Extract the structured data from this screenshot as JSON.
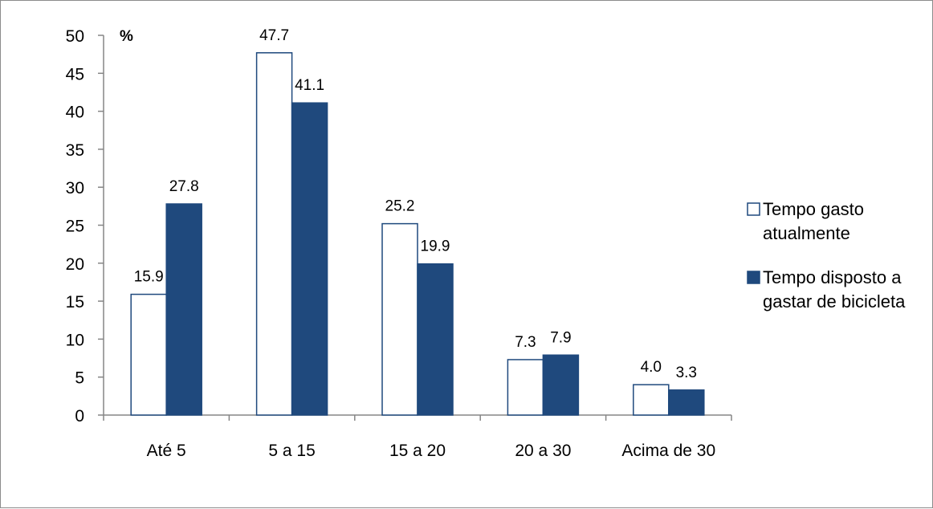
{
  "chart_data": {
    "type": "bar",
    "unit_label": "%",
    "categories": [
      "Até 5",
      "5 a 15",
      "15 a 20",
      "20 a 30",
      "Acima de 30"
    ],
    "series": [
      {
        "name_lines": [
          "Tempo gasto",
          "atualmente"
        ],
        "values": [
          15.9,
          47.7,
          25.2,
          7.3,
          4.0
        ],
        "value_labels": [
          "15.9",
          "47.7",
          "25.2",
          "7.3",
          "4.0"
        ],
        "fill": "#ffffff",
        "stroke": "#1f497d"
      },
      {
        "name_lines": [
          "Tempo disposto a",
          "gastar de bicicleta"
        ],
        "values": [
          27.8,
          41.1,
          19.9,
          7.9,
          3.3
        ],
        "value_labels": [
          "27.8",
          "41.1",
          "19.9",
          "7.9",
          "3.3"
        ],
        "fill": "#1f497d",
        "stroke": "#1f497d"
      }
    ],
    "ylim": [
      0,
      50
    ],
    "yticks": [
      0,
      5,
      10,
      15,
      20,
      25,
      30,
      35,
      40,
      45,
      50
    ],
    "grid": false,
    "legend_position": "right"
  }
}
